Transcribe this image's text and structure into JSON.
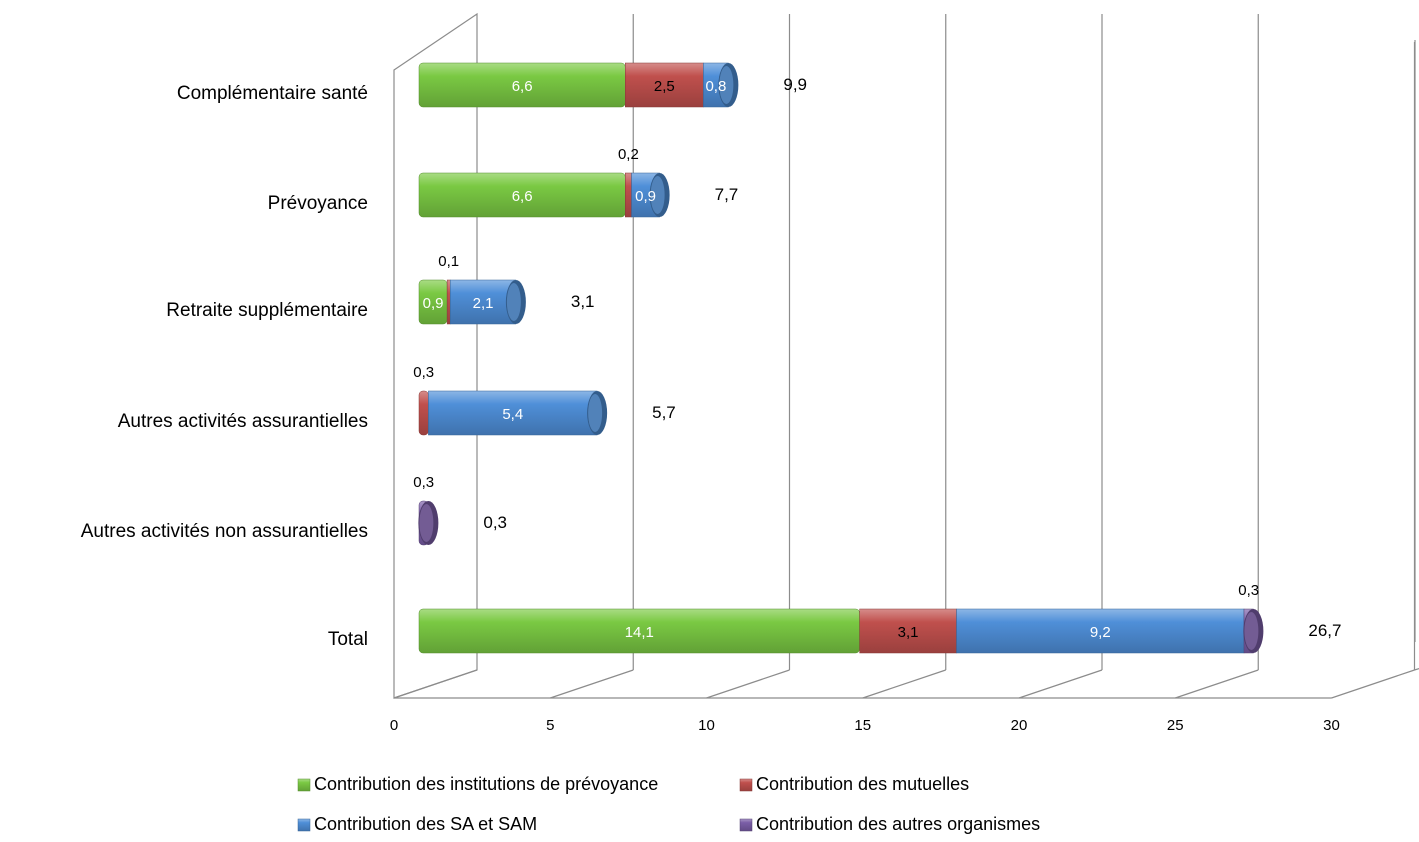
{
  "chart_data": {
    "type": "bar",
    "orientation": "horizontal",
    "stacked": true,
    "style": "3d-cylinder",
    "categories": [
      "Complémentaire santé",
      "Prévoyance",
      "Retraite supplémentaire",
      "Autres activités assurantielles",
      "Autres activités non assurantielles",
      "Total"
    ],
    "series": [
      {
        "name": "Contribution des institutions de prévoyance",
        "color": "#7ac943",
        "values": [
          6.6,
          6.6,
          0.9,
          0,
          0,
          14.1
        ],
        "labels": [
          "6,6",
          "6,6",
          "0,9",
          "",
          "",
          "14,1"
        ]
      },
      {
        "name": "Contribution des mutuelles",
        "color": "#c0504d",
        "values": [
          2.5,
          0.2,
          0.1,
          0.3,
          0,
          3.1
        ],
        "labels": [
          "2,5",
          "0,2",
          "0,1",
          "0,3",
          "",
          "3,1"
        ]
      },
      {
        "name": "Contribution des SA et SAM",
        "color": "#4f8fd8",
        "values": [
          0.8,
          0.9,
          2.1,
          5.4,
          0,
          9.2
        ],
        "labels": [
          "0,8",
          "0,9",
          "2,1",
          "5,4",
          "",
          "9,2"
        ]
      },
      {
        "name": "Contribution des autres organismes",
        "color": "#7b5ea7",
        "values": [
          0,
          0,
          0,
          0,
          0.3,
          0.3
        ],
        "labels": [
          "",
          "",
          "",
          "",
          "0,3",
          "0,3"
        ]
      }
    ],
    "totals": [
      "9,9",
      "7,7",
      "3,1",
      "5,7",
      "0,3",
      "26,7"
    ],
    "xlim": [
      0,
      30
    ],
    "xticks": [
      "0",
      "5",
      "10",
      "15",
      "20",
      "25",
      "30"
    ],
    "grid": true,
    "legend_position": "bottom"
  }
}
